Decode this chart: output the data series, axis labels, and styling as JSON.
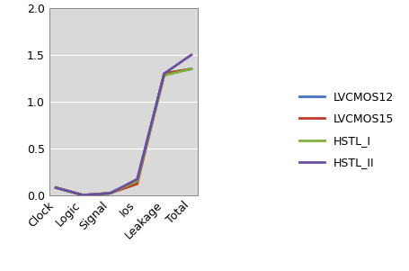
{
  "categories": [
    "Clock",
    "Logic",
    "Signal",
    "Ios",
    "Leakage",
    "Total"
  ],
  "series": [
    {
      "label": "LVCMOS12",
      "color": "#4472C4",
      "values": [
        0.08,
        0.0,
        0.02,
        0.15,
        1.3,
        1.35
      ]
    },
    {
      "label": "LVCMOS15",
      "color": "#C0392B",
      "values": [
        0.08,
        0.0,
        0.02,
        0.12,
        1.3,
        1.35
      ]
    },
    {
      "label": "HSTL_I",
      "color": "#7FB03A",
      "values": [
        0.08,
        0.0,
        0.02,
        0.15,
        1.28,
        1.35
      ]
    },
    {
      "label": "HSTL_II",
      "color": "#6B4EA0",
      "values": [
        0.08,
        0.0,
        0.02,
        0.17,
        1.3,
        1.5
      ]
    }
  ],
  "ylim": [
    0,
    2.0
  ],
  "yticks": [
    0,
    0.5,
    1.0,
    1.5,
    2.0
  ],
  "plot_bg_color": "#D9D9D9",
  "fig_bg_color": "#FFFFFF",
  "grid_color": "#FFFFFF",
  "legend_fontsize": 9,
  "tick_fontsize": 9,
  "linewidth": 2.0
}
